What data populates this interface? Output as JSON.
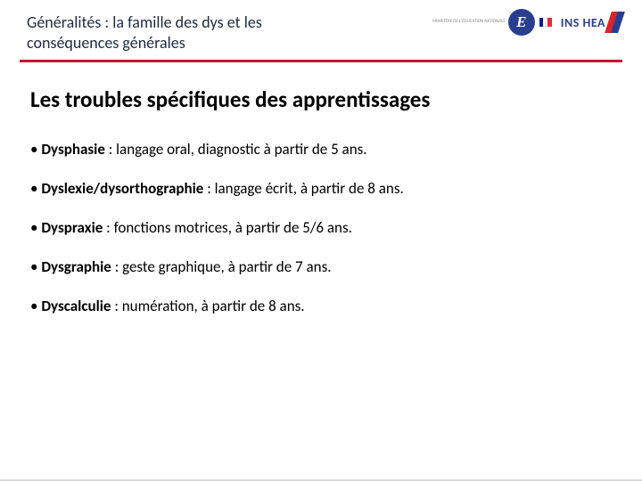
{
  "header": {
    "title": "Généralités : la famille des dys et les conséquences générales",
    "title_color": "#1f2a44",
    "divider_color": "#c8152d"
  },
  "logos": {
    "education": {
      "small_text": "MINISTÈRE DE L'ÉDUCATION NATIONALE",
      "letter": "E",
      "circle_color": "#2a3e8f"
    },
    "inshea": {
      "text": "INS HEA",
      "text_color": "#2a3e8f",
      "accent_colors": [
        "#d9252a",
        "#2a3e8f"
      ]
    }
  },
  "content": {
    "main_title": "Les troubles spécifiques des apprentissages",
    "bullets": [
      {
        "term": "Dysphasie",
        "desc": " : langage oral, diagnostic à partir de 5 ans."
      },
      {
        "term": "Dyslexie/dysorthographie",
        "desc": " : langage écrit, à partir de 8 ans."
      },
      {
        "term": "Dyspraxie",
        "desc": " : fonctions motrices, à partir de 5/6 ans."
      },
      {
        "term": "Dysgraphie",
        "desc": " : geste graphique, à partir de 7 ans."
      },
      {
        "term": "Dyscalculie",
        "desc": " : numération, à partir de 8 ans."
      }
    ]
  },
  "styling": {
    "background_color": "#ffffff",
    "body_font": "Calibri",
    "main_title_fontsize": 25,
    "bullet_fontsize": 17,
    "bullet_spacing": 22
  }
}
